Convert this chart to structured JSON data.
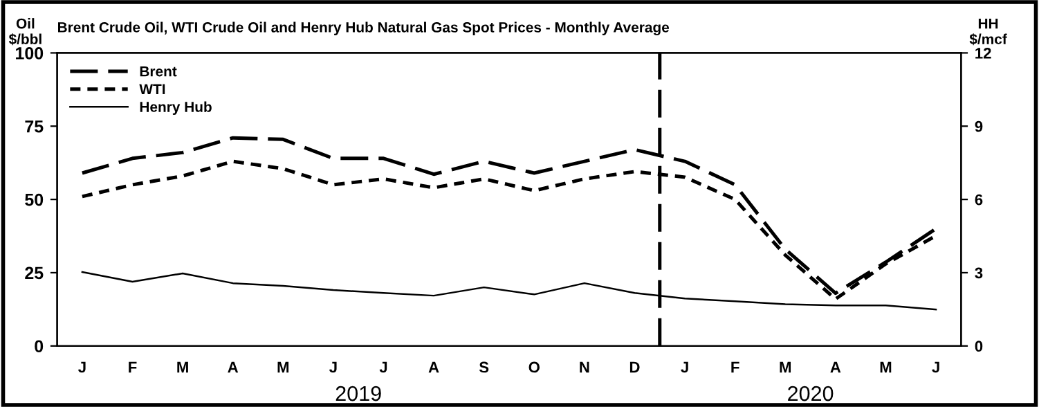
{
  "chart_data": {
    "type": "line",
    "title": "Brent Crude Oil, WTI Crude Oil and Henry Hub Natural Gas Spot Prices - Monthly Average",
    "ylabel": "Oil\n$/bbl",
    "y2label": "HH\n$/mcf",
    "categories": [
      "J",
      "F",
      "M",
      "A",
      "M",
      "J",
      "J",
      "A",
      "S",
      "O",
      "N",
      "D",
      "J",
      "F",
      "M",
      "A",
      "M",
      "J"
    ],
    "series": [
      {
        "name": "Brent",
        "color": "#000000",
        "line_style": "dashed",
        "values": [
          59,
          64,
          66,
          71,
          70.5,
          64,
          64,
          58.6,
          63,
          59,
          63,
          67,
          63,
          55,
          33,
          18,
          28.6,
          40
        ]
      },
      {
        "name": "WTI",
        "color": "#000000",
        "line_style": "dotted",
        "values": [
          51,
          55,
          58,
          63,
          60.5,
          55,
          57,
          54,
          57,
          53,
          57,
          59.5,
          57.6,
          50,
          31,
          16,
          28,
          37.6
        ]
      },
      {
        "name": "Henry Hub",
        "color": "#000000",
        "line_style": "solid",
        "axis": "y2",
        "values": [
          3.03,
          2.63,
          2.97,
          2.57,
          2.46,
          2.29,
          2.17,
          2.06,
          2.4,
          2.11,
          2.57,
          2.17,
          1.94,
          1.83,
          1.71,
          1.66,
          1.66,
          1.49
        ]
      }
    ],
    "ylim": [
      0,
      100
    ],
    "yticks": [
      0,
      25,
      50,
      75,
      100
    ],
    "y2lim": [
      0,
      12
    ],
    "y2ticks": [
      0,
      3,
      6,
      9,
      12
    ],
    "annotations": [
      "2019",
      "2020"
    ],
    "legend": "top left",
    "grid": false
  }
}
